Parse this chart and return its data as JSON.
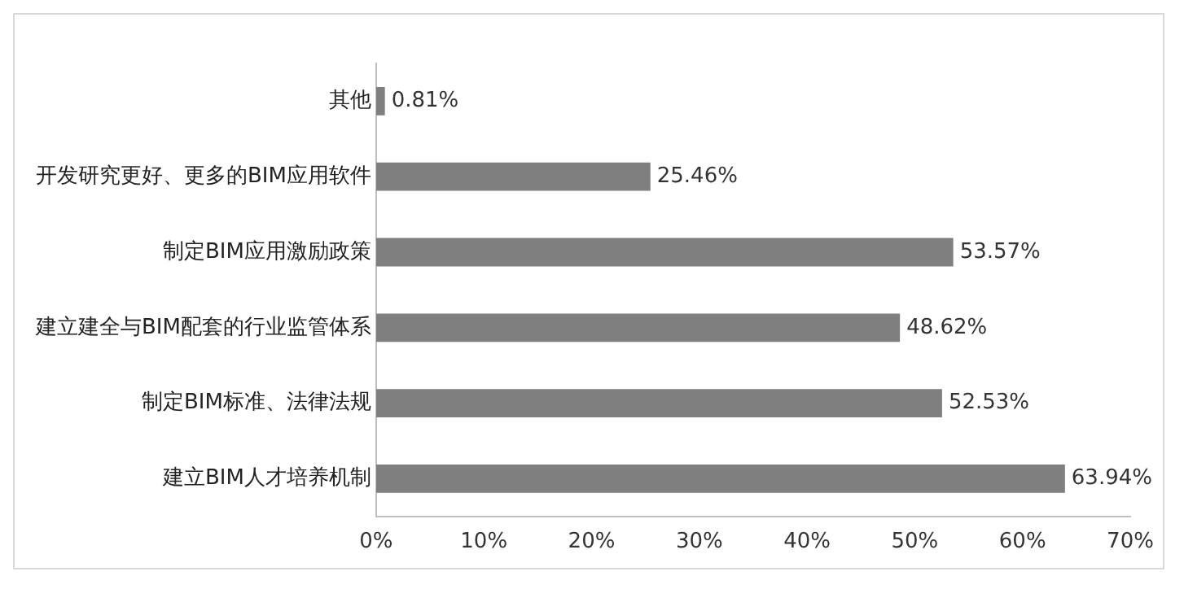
{
  "chart_data": {
    "type": "bar",
    "orientation": "horizontal",
    "categories": [
      "其他",
      "开发研究更好、更多的BIM应用软件",
      "制定BIM应用激励政策",
      "建立建全与BIM配套的行业监管体系",
      "制定BIM标准、法律法规",
      "建立BIM人才培养机制"
    ],
    "values": [
      0.81,
      25.46,
      53.57,
      48.62,
      52.53,
      63.94
    ],
    "value_labels": [
      "0.81%",
      "25.46%",
      "53.57%",
      "48.62%",
      "52.53%",
      "63.94%"
    ],
    "color": "#7f7f7f",
    "xlim": [
      0,
      70
    ],
    "xticks": [
      {
        "value": 0,
        "label": "0%"
      },
      {
        "value": 10,
        "label": "10%"
      },
      {
        "value": 20,
        "label": "20%"
      },
      {
        "value": 30,
        "label": "30%"
      },
      {
        "value": 40,
        "label": "40%"
      },
      {
        "value": 50,
        "label": "50%"
      },
      {
        "value": 60,
        "label": "60%"
      },
      {
        "value": 70,
        "label": "70%"
      }
    ],
    "grid": false,
    "legend": false
  }
}
